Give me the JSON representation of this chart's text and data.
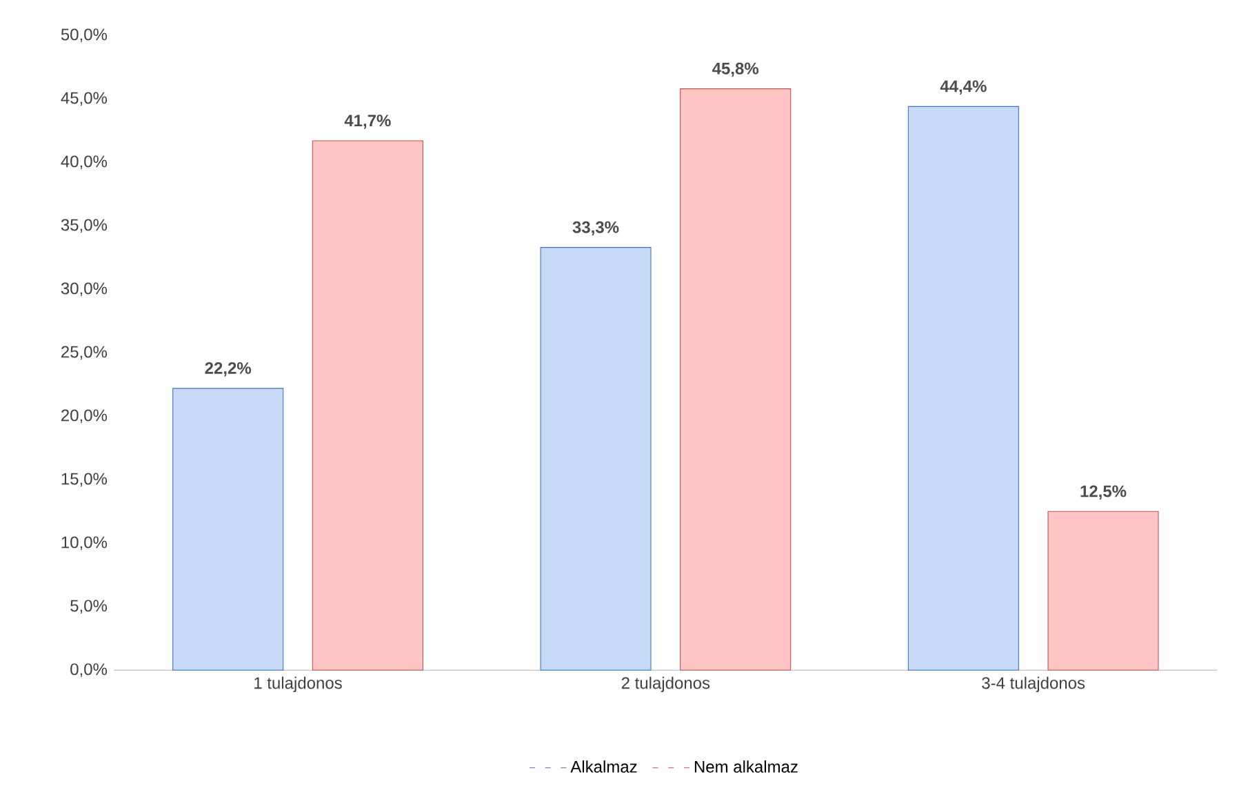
{
  "chart_data": {
    "type": "bar",
    "categories": [
      "1 tulajdonos",
      "2 tulajdonos",
      "3-4 tulajdonos"
    ],
    "series": [
      {
        "name": "Alkalmaz",
        "color": "#c6d9f7",
        "values": [
          22.2,
          33.3,
          44.4
        ],
        "value_labels": [
          "22,2%",
          "33,3%",
          "44,4%"
        ]
      },
      {
        "name": "Nem alkalmaz",
        "color": "#ffc4c4",
        "values": [
          41.7,
          45.8,
          12.5
        ],
        "value_labels": [
          "41,7%",
          "45,8%",
          "12,5%"
        ]
      }
    ],
    "ylim": [
      0,
      50
    ],
    "yticks": [
      {
        "value": 0,
        "label": "0,0%"
      },
      {
        "value": 5,
        "label": "5,0%"
      },
      {
        "value": 10,
        "label": "10,0%"
      },
      {
        "value": 15,
        "label": "15,0%"
      },
      {
        "value": 20,
        "label": "20,0%"
      },
      {
        "value": 25,
        "label": "25,0%"
      },
      {
        "value": 30,
        "label": "30,0%"
      },
      {
        "value": 35,
        "label": "35,0%"
      },
      {
        "value": 40,
        "label": "40,0%"
      },
      {
        "value": 45,
        "label": "45,0%"
      },
      {
        "value": 50,
        "label": "50,0%"
      }
    ],
    "legend": "bottom",
    "grid": false
  }
}
